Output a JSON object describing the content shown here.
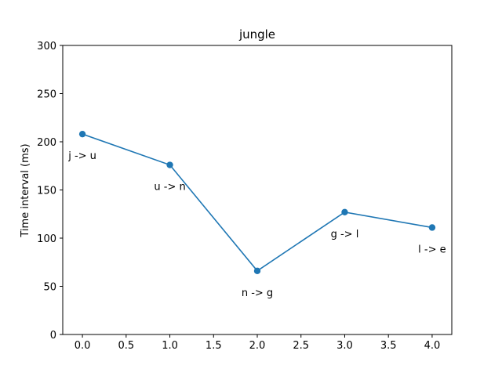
{
  "chart_data": {
    "type": "line",
    "title": "jungle",
    "xlabel": "",
    "ylabel": "Time interval (ms)",
    "xlim": [
      -0.225,
      4.225
    ],
    "ylim": [
      0,
      300
    ],
    "x_ticks": [
      0.0,
      0.5,
      1.0,
      1.5,
      2.0,
      2.5,
      3.0,
      3.5,
      4.0
    ],
    "x_tick_labels": [
      "0.0",
      "0.5",
      "1.0",
      "1.5",
      "2.0",
      "2.5",
      "3.0",
      "3.5",
      "4.0"
    ],
    "y_ticks": [
      0,
      50,
      100,
      150,
      200,
      250,
      300
    ],
    "y_tick_labels": [
      "0",
      "50",
      "100",
      "150",
      "200",
      "250",
      "300"
    ],
    "grid": false,
    "series": [
      {
        "x": [
          0,
          1,
          2,
          3,
          4
        ],
        "values": [
          208,
          176,
          66,
          127,
          111
        ],
        "point_labels": [
          "j -> u",
          "u -> n",
          "n -> g",
          "g -> l",
          "l -> e"
        ],
        "color": "#1f77b4",
        "marker": "circle"
      }
    ]
  }
}
